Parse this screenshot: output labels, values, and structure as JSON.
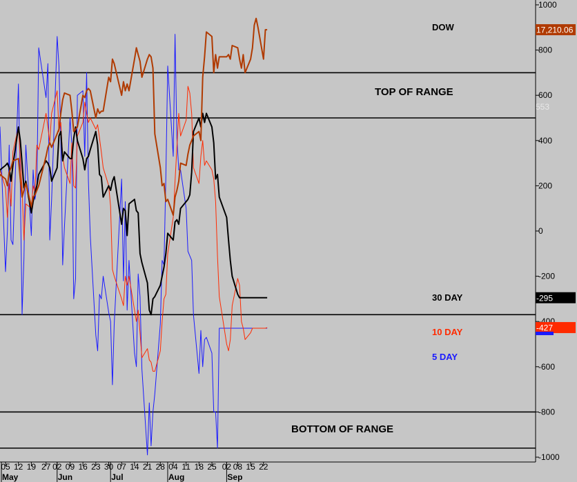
{
  "chart_data": {
    "type": "line",
    "x_dates": [
      "May 1",
      "May 2",
      "May 5",
      "May 6",
      "May 7",
      "May 8",
      "May 9",
      "May 12",
      "May 13",
      "May 14",
      "May 15",
      "May 16",
      "May 19",
      "May 20",
      "May 21",
      "May 22",
      "May 23",
      "May 27",
      "May 28",
      "May 29",
      "May 30",
      "Jun 2",
      "Jun 3",
      "Jun 4",
      "Jun 5",
      "Jun 6",
      "Jun 9",
      "Jun 10",
      "Jun 11",
      "Jun 12",
      "Jun 13",
      "Jun 16",
      "Jun 17",
      "Jun 18",
      "Jun 19",
      "Jun 20",
      "Jun 23",
      "Jun 24",
      "Jun 25",
      "Jun 26",
      "Jun 27",
      "Jun 30",
      "Jul 1",
      "Jul 2",
      "Jul 3",
      "Jul 7",
      "Jul 8",
      "Jul 9",
      "Jul 10",
      "Jul 11",
      "Jul 14",
      "Jul 15",
      "Jul 16",
      "Jul 17",
      "Jul 18",
      "Jul 21",
      "Jul 22",
      "Jul 23",
      "Jul 24",
      "Jul 25",
      "Jul 28",
      "Jul 29",
      "Jul 30",
      "Jul 31",
      "Aug 1",
      "Aug 4",
      "Aug 5",
      "Aug 6",
      "Aug 7",
      "Aug 8",
      "Aug 11",
      "Aug 12",
      "Aug 13",
      "Aug 14",
      "Aug 15",
      "Aug 18",
      "Aug 19",
      "Aug 20",
      "Aug 21",
      "Aug 22",
      "Aug 25",
      "Aug 26",
      "Aug 27",
      "Aug 28",
      "Aug 29",
      "Sep 2",
      "Sep 3",
      "Sep 4",
      "Sep 5",
      "Sep 8",
      "Sep 9",
      "Sep 10",
      "Sep 11",
      "Sep 12",
      "Sep 15",
      "Sep 16",
      "Sep 17",
      "Sep 18",
      "Sep 19",
      "Sep 22",
      "Sep 23",
      "Sep 24"
    ],
    "x_tick_labels": [
      "05",
      "12",
      "19",
      "27",
      "02",
      "09",
      "16",
      "23",
      "30",
      "07",
      "14",
      "21",
      "28",
      "04",
      "11",
      "18",
      "25",
      "02",
      "08",
      "15",
      "22"
    ],
    "x_tick_dates": [
      "May 5",
      "May 12",
      "May 19",
      "May 27",
      "Jun 2",
      "Jun 9",
      "Jun 16",
      "Jun 23",
      "Jun 30",
      "Jul 7",
      "Jul 14",
      "Jul 21",
      "Jul 28",
      "Aug 4",
      "Aug 11",
      "Aug 18",
      "Aug 25",
      "Sep 2",
      "Sep 8",
      "Sep 15",
      "Sep 22"
    ],
    "month_labels": [
      {
        "label": "May",
        "date": "May 1"
      },
      {
        "label": "Jun",
        "date": "Jun 2"
      },
      {
        "label": "Jul",
        "date": "Jul 1"
      },
      {
        "label": "Aug",
        "date": "Aug 1"
      },
      {
        "label": "Sep",
        "date": "Sep 2"
      }
    ],
    "y_ticks": [
      1000,
      800,
      600,
      400,
      200,
      0,
      -200,
      -400,
      -600,
      -800,
      -1000
    ],
    "y_tick_labels": [
      "1000",
      "800",
      "600",
      "400",
      "200",
      "0",
      "-200",
      "-400",
      "-600",
      "-800",
      "-1000"
    ],
    "ylim": [
      -1000,
      1000
    ],
    "grid": false,
    "range_lines": [
      700,
      500,
      -370,
      -800,
      -960
    ],
    "series": [
      {
        "name": "DOW",
        "color": "#b03a00",
        "values": [
          210,
          250,
          230,
          200,
          260,
          280,
          310,
          320,
          230,
          150,
          180,
          210,
          110,
          150,
          160,
          180,
          200,
          330,
          370,
          390,
          370,
          430,
          450,
          520,
          580,
          610,
          600,
          530,
          440,
          450,
          460,
          600,
          590,
          620,
          630,
          620,
          500,
          540,
          520,
          530,
          530,
          680,
          660,
          760,
          740,
          600,
          660,
          620,
          650,
          620,
          760,
          810,
          780,
          750,
          680,
          760,
          780,
          770,
          720,
          430,
          280,
          200,
          210,
          130,
          140,
          70,
          150,
          180,
          220,
          300,
          290,
          340,
          380,
          400,
          420,
          440,
          400,
          680,
          770,
          880,
          860,
          700,
          780,
          720,
          770,
          770,
          780,
          760,
          820,
          810,
          760,
          720,
          780,
          700,
          760,
          810,
          910,
          940,
          900,
          760,
          890,
          890
        ],
        "end_label": "17,210.06",
        "end_label_bg": "#b03a00",
        "end_label_color": "#ffffff"
      },
      {
        "name": "30 DAY",
        "color": "#000000",
        "values": [
          230,
          270,
          290,
          300,
          280,
          220,
          290,
          460,
          400,
          300,
          190,
          220,
          80,
          130,
          170,
          200,
          250,
          310,
          300,
          280,
          220,
          280,
          420,
          440,
          310,
          350,
          320,
          320,
          410,
          460,
          400,
          320,
          270,
          320,
          330,
          360,
          440,
          380,
          250,
          240,
          150,
          200,
          180,
          220,
          240,
          30,
          100,
          90,
          -20,
          120,
          140,
          90,
          80,
          -100,
          -140,
          -230,
          -350,
          -370,
          -300,
          -290,
          -240,
          -200,
          -160,
          -100,
          -10,
          -40,
          40,
          50,
          30,
          100,
          130,
          140,
          160,
          260,
          440,
          500,
          460,
          520,
          480,
          520,
          460,
          390,
          230,
          250,
          150,
          60,
          -40,
          -130,
          -200,
          -280,
          -295,
          -295,
          -295,
          -295,
          -295,
          -295,
          -295,
          -295,
          -295,
          -295,
          -295,
          -295
        ],
        "end_label": "-295",
        "end_label_bg": "#000000",
        "end_label_color": "#ffffff"
      },
      {
        "name": "10 DAY",
        "color": "#ff2a00",
        "values": [
          210,
          270,
          190,
          60,
          210,
          110,
          350,
          460,
          320,
          190,
          -40,
          120,
          100,
          200,
          170,
          380,
          360,
          520,
          460,
          390,
          520,
          620,
          440,
          480,
          330,
          280,
          210,
          390,
          200,
          190,
          420,
          480,
          570,
          520,
          480,
          500,
          450,
          470,
          410,
          350,
          280,
          200,
          110,
          -170,
          -200,
          -300,
          -330,
          -200,
          -240,
          -200,
          -350,
          -400,
          -350,
          -450,
          -560,
          -520,
          -570,
          -580,
          -620,
          -620,
          -530,
          -400,
          -300,
          -280,
          -100,
          60,
          220,
          370,
          520,
          420,
          490,
          640,
          610,
          520,
          280,
          210,
          330,
          400,
          290,
          310,
          270,
          230,
          130,
          -110,
          -290,
          -500,
          -530,
          -480,
          -330,
          -210,
          -240,
          -400,
          -430,
          -480,
          -450,
          -430,
          -430,
          -430,
          -430,
          -430,
          -430,
          -427
        ],
        "end_label": "-427",
        "end_label_bg": "#ff2a00",
        "end_label_color": "#ffffff"
      },
      {
        "name": "5 DAY",
        "color": "#1a1aff",
        "values": [
          470,
          460,
          -180,
          0,
          380,
          -40,
          -60,
          650,
          200,
          -370,
          -120,
          380,
          -20,
          270,
          140,
          200,
          810,
          590,
          740,
          -40,
          140,
          860,
          730,
          410,
          -150,
          20,
          500,
          380,
          -300,
          -210,
          600,
          620,
          330,
          700,
          220,
          -20,
          -460,
          -530,
          -280,
          -300,
          -200,
          -360,
          -400,
          -680,
          -410,
          230,
          -220,
          130,
          -350,
          -130,
          -540,
          -600,
          -190,
          -290,
          -610,
          -990,
          -760,
          -950,
          -800,
          -720,
          -410,
          -130,
          -150,
          240,
          730,
          330,
          870,
          410,
          270,
          270,
          100,
          -90,
          -110,
          -130,
          -370,
          -630,
          -440,
          -600,
          -480,
          -470,
          -540,
          -800,
          -800,
          -960,
          -430,
          -430,
          -430,
          -430,
          -430,
          -430,
          -430,
          -430,
          -430,
          -430,
          -430,
          -430,
          -430,
          -430,
          -430,
          -430,
          -430,
          -430
        ],
        "end_label": "",
        "end_label_bg": "#1a1aff",
        "end_label_color": "#ffffff"
      }
    ],
    "annotations": [
      "TOP OF RANGE",
      "BOTTOM OF RANGE",
      "553"
    ],
    "legend": [
      {
        "label": "DOW",
        "color": "#000000"
      },
      {
        "label": "30 DAY",
        "color": "#000000"
      },
      {
        "label": "10 DAY",
        "color": "#ff2a00"
      },
      {
        "label": "5 DAY",
        "color": "#1a1aff"
      }
    ]
  }
}
